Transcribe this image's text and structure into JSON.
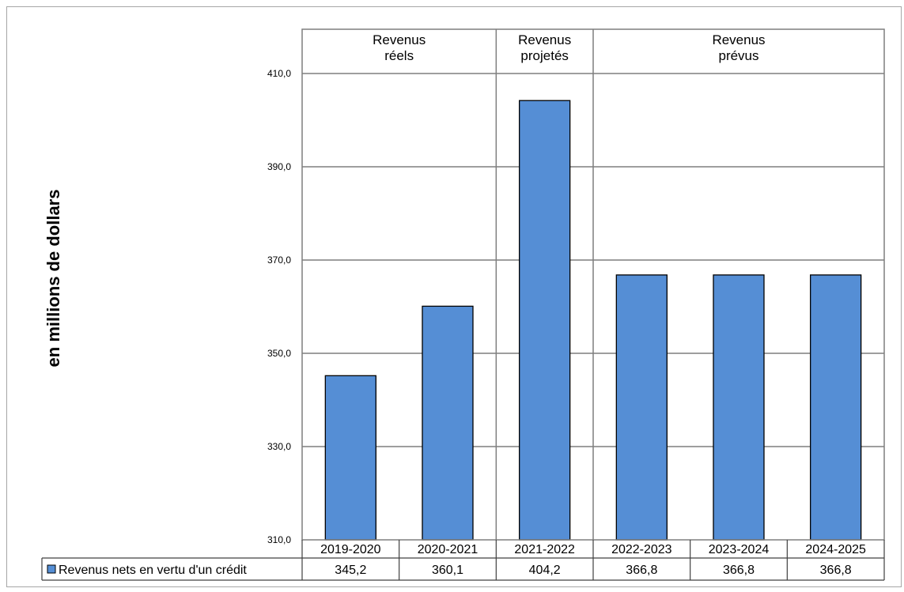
{
  "chart_data": {
    "type": "bar",
    "ylabel": "en millions  de dollars",
    "ylim": [
      310,
      410
    ],
    "yticks": [
      "310,0",
      "330,0",
      "350,0",
      "370,0",
      "390,0",
      "410,0"
    ],
    "ytick_values": [
      310,
      330,
      350,
      370,
      390,
      410
    ],
    "categories": [
      "2019-2020",
      "2020-2021",
      "2021-2022",
      "2022-2023",
      "2023-2024",
      "2024-2025"
    ],
    "series": [
      {
        "name": "Revenus nets en vertu d'un crédit",
        "values": [
          345.2,
          360.1,
          404.2,
          366.8,
          366.8,
          366.8
        ],
        "value_labels": [
          "345,2",
          "360,1",
          "404,2",
          "366,8",
          "366,8",
          "366,8"
        ],
        "color": "#558ED5"
      }
    ],
    "groups": [
      {
        "label_line1": "Revenus",
        "label_line2": "réels",
        "start": 0,
        "end": 1
      },
      {
        "label_line1": "Revenus",
        "label_line2": "projetés",
        "start": 2,
        "end": 2
      },
      {
        "label_line1": "Revenus",
        "label_line2": "prévus",
        "start": 3,
        "end": 5
      }
    ],
    "grid": true,
    "legend": "bottom-left, in data table"
  }
}
